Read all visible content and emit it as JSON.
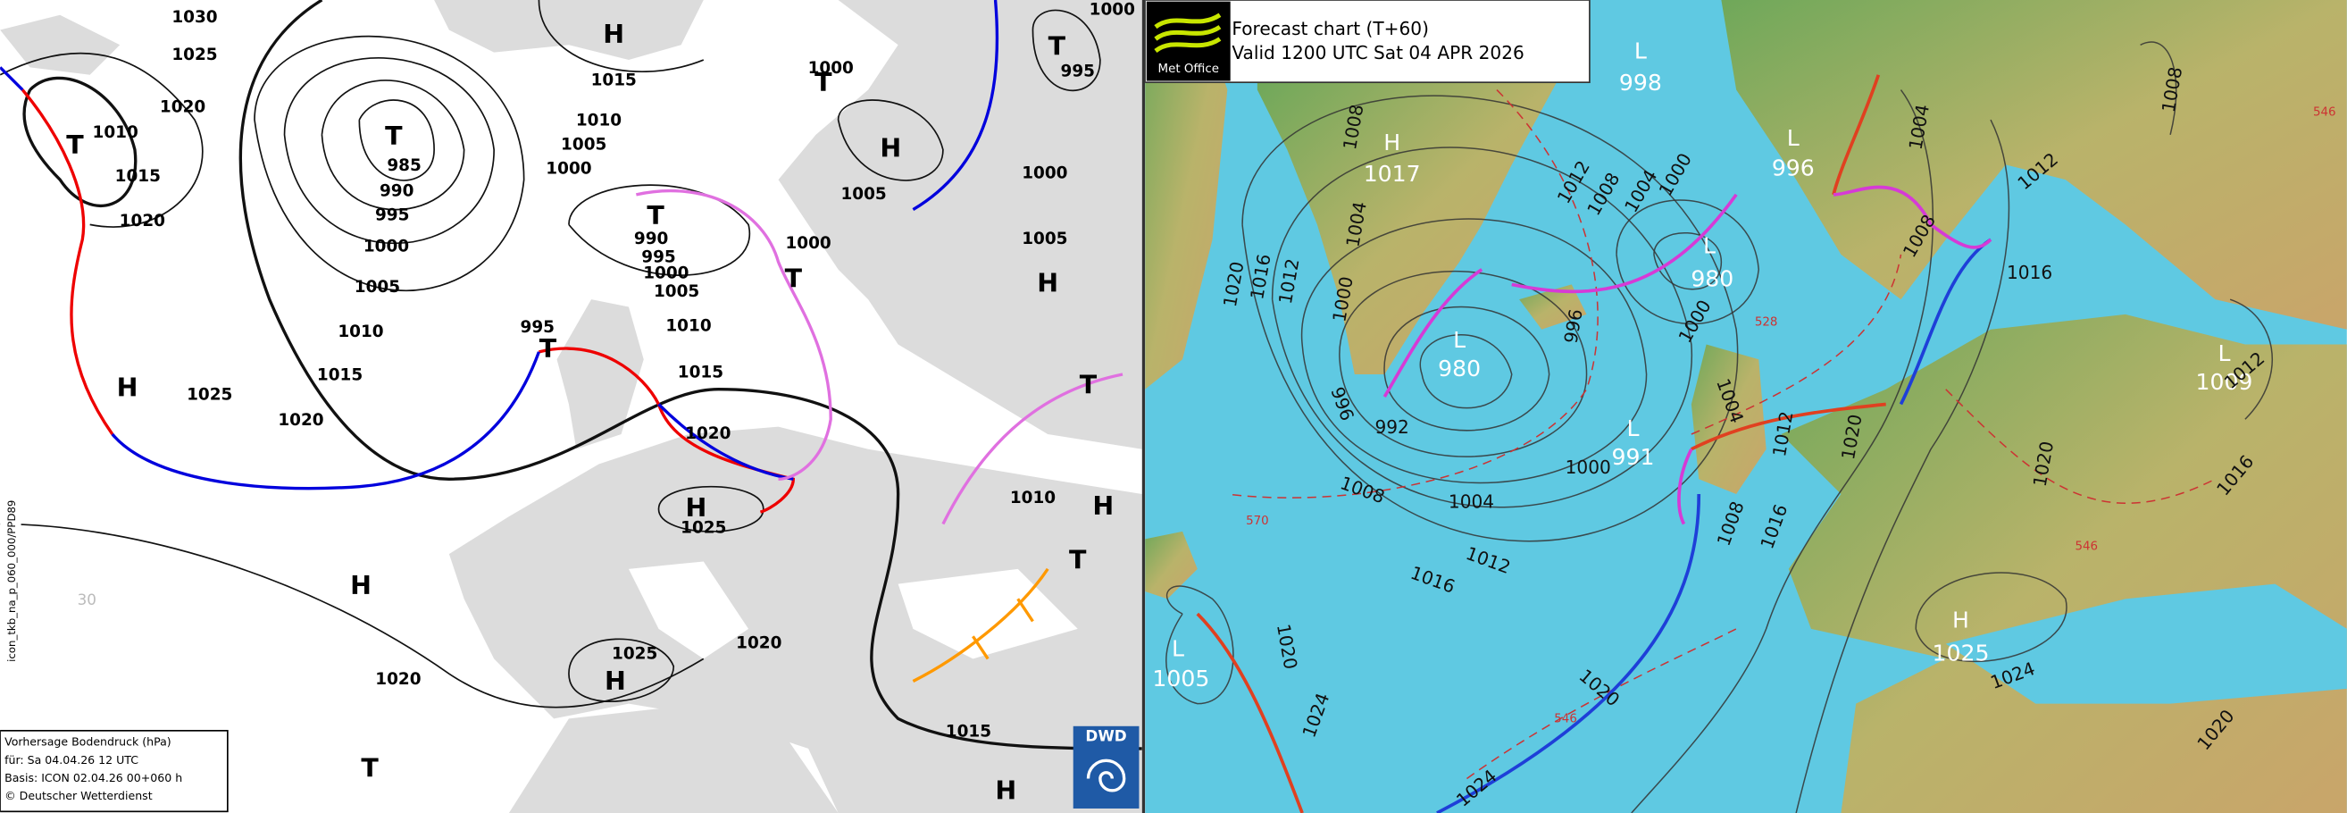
{
  "left_chart": {
    "labels": [
      "1030",
      "1025",
      "1020",
      "1010",
      "1015",
      "1020",
      "T",
      "T",
      "985",
      "990",
      "995",
      "1000",
      "1005",
      "1010",
      "1015",
      "1020",
      "1025",
      "H",
      "H",
      "1015",
      "1010",
      "1005",
      "1000",
      "T",
      "1000",
      "H",
      "1005",
      "T",
      "995",
      "1000",
      "1000",
      "1005",
      "H",
      "T",
      "990",
      "995",
      "1000",
      "1005",
      "1010",
      "1015",
      "995",
      "T",
      "T",
      "1000",
      "1020",
      "H",
      "1025",
      "T",
      "1010",
      "H",
      "T",
      "H",
      "1025",
      "H",
      "1020",
      "1020",
      "1015",
      "T",
      "H"
    ],
    "grid_label": "30",
    "side_label": "icon_tkb_na_p_060_000/PPD89",
    "footer": {
      "line1": "Vorhersage Bodendruck (hPa)",
      "line2": "für:  Sa  04.04.26  12 UTC",
      "line3": "Basis: ICON  02.04.26 00+060 h",
      "line4": "© Deutscher Wetterdienst"
    },
    "logo": "DWD"
  },
  "right_chart": {
    "title": "Forecast chart (T+60)",
    "valid": "Valid 1200 UTC Sat 04 APR 2026",
    "logo": "Met Office",
    "labels": [
      "L",
      "998",
      "H",
      "1017",
      "L",
      "996",
      "L",
      "980",
      "L",
      "980",
      "L",
      "991",
      "L",
      "1005",
      "H",
      "1025",
      "L",
      "1009",
      "1008",
      "1004",
      "1000",
      "1020",
      "1016",
      "1012",
      "1012",
      "1008",
      "1004",
      "1000",
      "996",
      "1000",
      "996",
      "992",
      "1000",
      "1004",
      "1008",
      "1012",
      "1016",
      "1004",
      "1012",
      "1020",
      "1008",
      "1016",
      "1020",
      "1004",
      "1012",
      "1008",
      "1016",
      "1008",
      "1012",
      "1016",
      "1020",
      "1024",
      "1020",
      "1020",
      "1024",
      "1024"
    ],
    "thickness_labels": [
      "546",
      "528",
      "570",
      "546",
      "546"
    ]
  }
}
